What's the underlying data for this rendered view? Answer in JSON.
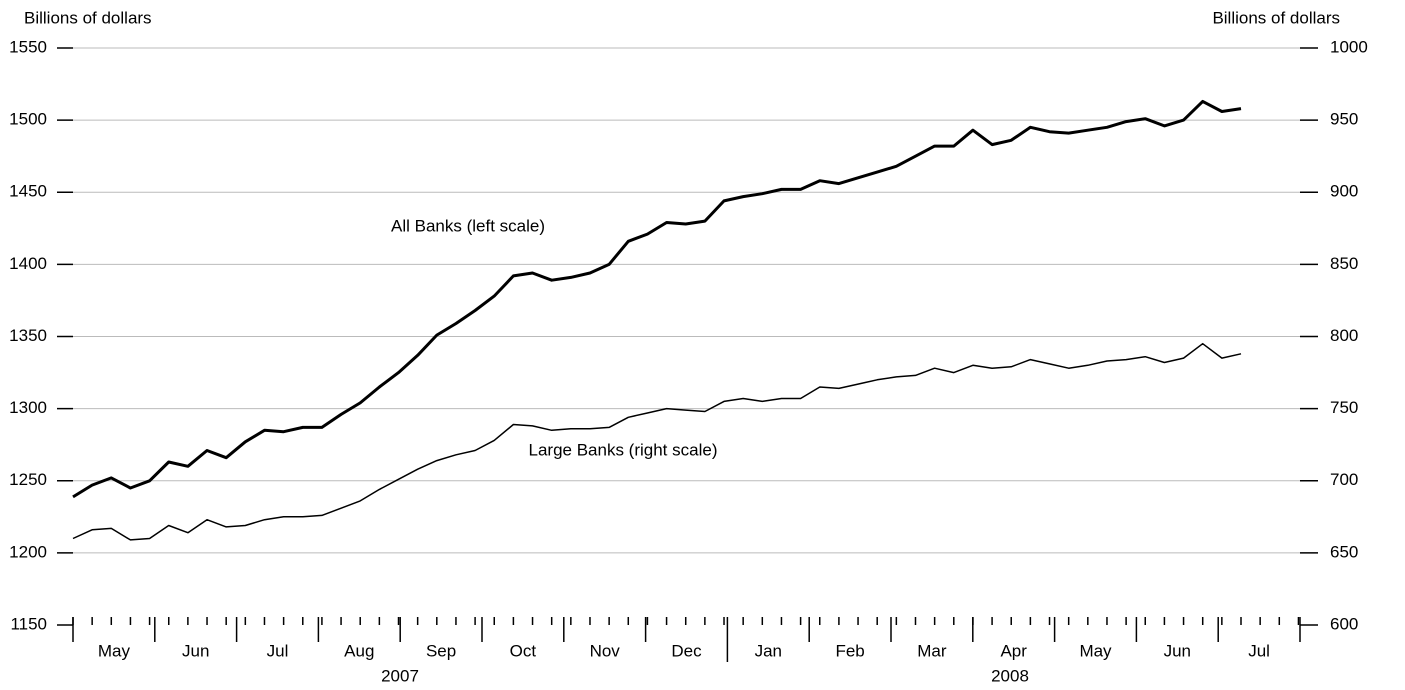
{
  "chart_data": {
    "type": "line",
    "y_label": "Billions of dollars",
    "y2_label": "Billions of dollars",
    "ylim": [
      1150,
      1550
    ],
    "yticks": [
      1150,
      1200,
      1250,
      1300,
      1350,
      1400,
      1450,
      1500,
      1550
    ],
    "y2lim": [
      600,
      1000
    ],
    "y2ticks": [
      600,
      650,
      700,
      750,
      800,
      850,
      900,
      950,
      1000
    ],
    "grid": true,
    "months": [
      "May",
      "Jun",
      "Jul",
      "Aug",
      "Sep",
      "Oct",
      "Nov",
      "Dec",
      "Jan",
      "Feb",
      "Mar",
      "Apr",
      "May",
      "Jun",
      "Jul"
    ],
    "years": [
      "2007",
      "2008"
    ],
    "categories": [
      null,
      null,
      null,
      null,
      null,
      null,
      null,
      null,
      null,
      null,
      null,
      null,
      null,
      null,
      null,
      null,
      null,
      null,
      null,
      null,
      null,
      null,
      null,
      null,
      null,
      null,
      null,
      null,
      null,
      null,
      null,
      null,
      null,
      null,
      null,
      null,
      null,
      null,
      null,
      null,
      null,
      null,
      null,
      null,
      null,
      null,
      null,
      null,
      null,
      null,
      null,
      null,
      null,
      null,
      null,
      null,
      null,
      null,
      null,
      null,
      null,
      null
    ],
    "series": [
      {
        "name": "All Banks (left scale)",
        "color": "#000000",
        "values": [
          1238.8,
          1247,
          1252,
          1245,
          1250,
          1263,
          1260,
          1271,
          1266,
          1277,
          1285,
          1284,
          1287,
          1287,
          1296,
          1304,
          1315,
          1325,
          1337,
          1351,
          1359,
          1368,
          1378,
          1392,
          1394,
          1389,
          1391,
          1394,
          1400,
          1416,
          1421,
          1429,
          1428,
          1430,
          1444,
          1447,
          1449,
          1452,
          1452,
          1458,
          1456,
          1460,
          1464,
          1468,
          1475,
          1482,
          1482,
          1493,
          1483,
          1486,
          1495,
          1492,
          1491,
          1493,
          1495,
          1499,
          1501,
          1496,
          1500,
          1513,
          1506,
          1508
        ]
      },
      {
        "name": "Large Banks (right scale)",
        "color": "#000000",
        "axis": "y2",
        "values": [
          660,
          666,
          667,
          659,
          660,
          669,
          664,
          673,
          668,
          669,
          673,
          675,
          675,
          676,
          681,
          686,
          694,
          701,
          708,
          714,
          718,
          721,
          728,
          739,
          738,
          735,
          736,
          736,
          737,
          744,
          747,
          750,
          749,
          748,
          755,
          757,
          755,
          757,
          757,
          765,
          764,
          767,
          770,
          772,
          773,
          778,
          775,
          780,
          778,
          779,
          784,
          781,
          778,
          780,
          783,
          784,
          786,
          782,
          785,
          795,
          785,
          788
        ]
      }
    ]
  }
}
